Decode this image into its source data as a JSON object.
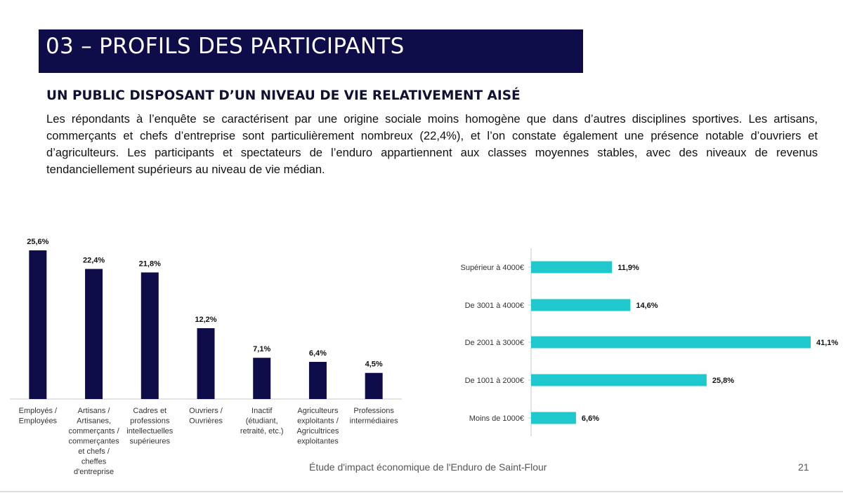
{
  "slide": {
    "title": "03 – PROFILS DES PARTICIPANTS",
    "subtitle": "UN PUBLIC DISPOSANT D’UN NIVEAU DE VIE RELATIVEMENT AISÉ",
    "paragraph": "Les répondants à l’enquête se caractérisent par une origine sociale moins homogène que dans d’autres disciplines sportives. Les artisans, commerçants et chefs d’entreprise sont particulièrement nombreux (22,4%), et l’on constate également une présence notable d’ouvriers et d’agriculteurs. Les participants et spectateurs de l’enduro appartiennent aux classes moyennes stables, avec des niveaux de revenus tendanciellement supérieurs au niveau de vie médian.",
    "footer": "Étude d'impact économique de l'Enduro de Saint-Flour",
    "page_number": "21"
  },
  "chart_data": [
    {
      "type": "bar",
      "categories": [
        "Employés / Employées",
        "Artisans / Artisanes, commerçants / commerçantes et chefs / cheffes d'entreprise",
        "Cadres et professions intellectuelles supérieures",
        "Ouvriers / Ouvrières",
        "Inactif (étudiant, retraité, etc.)",
        "Agriculteurs exploitants / Agricultrices exploitantes",
        "Professions intermédiaires"
      ],
      "category_lines": [
        [
          "Employés /",
          "Employées"
        ],
        [
          "Artisans /",
          "Artisanes,",
          "commerçants /",
          "commerçantes",
          "et chefs /",
          "cheffes",
          "d'entreprise"
        ],
        [
          "Cadres et",
          "professions",
          "intellectuelles",
          "supérieures"
        ],
        [
          "Ouvriers /",
          "Ouvrières"
        ],
        [
          "Inactif",
          "(étudiant,",
          "retraité, etc.)"
        ],
        [
          "Agriculteurs",
          "exploitants /",
          "Agricultrices",
          "exploitantes"
        ],
        [
          "Professions",
          "intermédiaires"
        ]
      ],
      "values": [
        25.6,
        22.4,
        21.8,
        12.2,
        7.1,
        6.4,
        4.5
      ],
      "data_labels": [
        "25,6%",
        "22,4%",
        "21,8%",
        "12,2%",
        "7,1%",
        "6,4%",
        "4,5%"
      ],
      "ylim": [
        0,
        25.6
      ],
      "color": "#0f0c4a",
      "orientation": "vertical",
      "grid": false
    },
    {
      "type": "bar",
      "orientation": "horizontal",
      "categories": [
        "Supérieur à 4000€",
        "De 3001 à 4000€",
        "De 2001 à 3000€",
        "De 1001 à 2000€",
        "Moins de 1000€"
      ],
      "values": [
        11.9,
        14.6,
        41.1,
        25.8,
        6.6
      ],
      "data_labels": [
        "11,9%",
        "14,6%",
        "41,1%",
        "25,8%",
        "6,6%"
      ],
      "xlim": [
        0,
        41.1
      ],
      "color": "#1ec8cc",
      "grid": false
    }
  ]
}
